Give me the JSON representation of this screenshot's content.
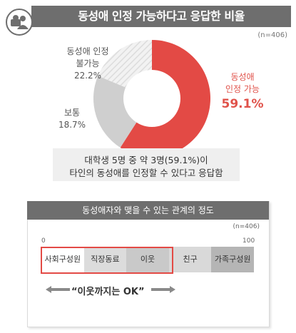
{
  "header": {
    "title": "동성애 인정 가능하다고 응답한 비율"
  },
  "panel1": {
    "sample_size": "(n=406)"
  },
  "chart_data": [
    {
      "type": "pie",
      "categories": [
        "동성애 인정 가능",
        "동성애 인정 불가능",
        "보통"
      ],
      "values": [
        59.1,
        22.2,
        18.7
      ],
      "labels": [
        {
          "name": "동성애 인정 가능",
          "line1": "동성애",
          "line2": "인정 가능",
          "value_text": "59.1%"
        },
        {
          "name": "동성애 인정 불가능",
          "line1": "동성애 인정",
          "line2": "불가능",
          "value_text": "22.2%"
        },
        {
          "name": "보통",
          "line1": "보통",
          "value_text": "18.7%"
        }
      ],
      "colors": {
        "agree": "#e34a45",
        "disagree": "#cfcfcf",
        "normal": "#f0f0f0",
        "normal_stripe": "#dddddd"
      }
    },
    {
      "type": "bar",
      "title": "동성애자와 맺을 수 있는 관계의 정도",
      "sample_size": "(n=406)",
      "axis": {
        "min_label": "0",
        "max_label": "100"
      },
      "categories": [
        "사회구성원",
        "직장동료",
        "이웃",
        "친구",
        "가족구성원"
      ],
      "highlighted": [
        "사회구성원",
        "직장동료",
        "이웃"
      ],
      "annotation": "“이웃까지는 OK”"
    }
  ],
  "summary": {
    "line1": "대학생 5명 중 약 3명(59.1%)이",
    "line2": "타인의 동성애를 인정할 수 있다고 응답함"
  }
}
